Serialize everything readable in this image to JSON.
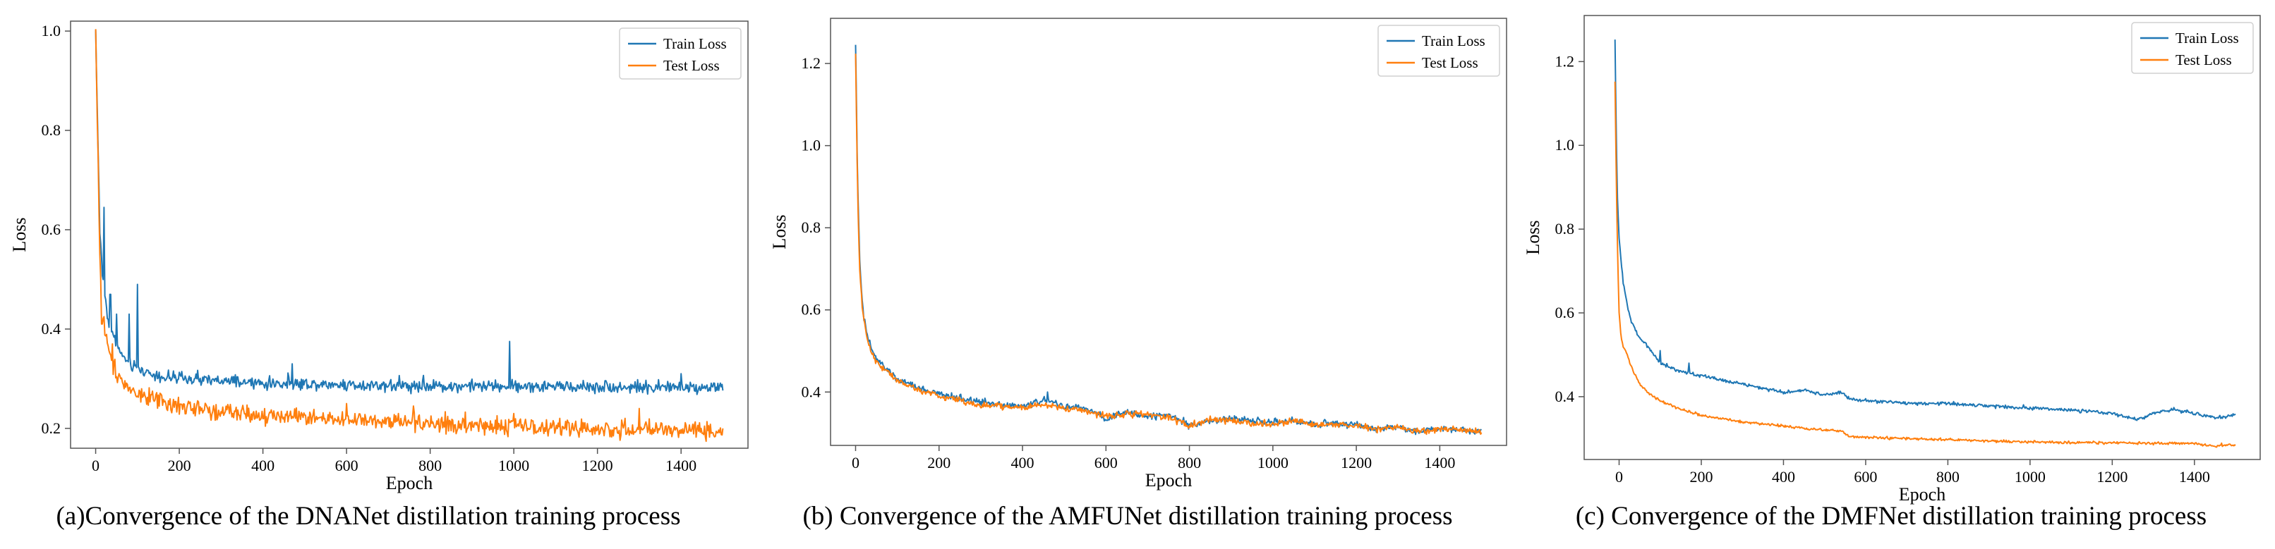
{
  "colors": {
    "train": "#1f77b4",
    "test": "#ff7f0e",
    "axis": "#555555"
  },
  "chart_data": [
    {
      "type": "line",
      "caption": "(a)Convergence of the DNANet distillation training process",
      "xlabel": "Epoch",
      "ylabel": "Loss",
      "xlim": [
        -60,
        1560
      ],
      "ylim": [
        0.16,
        1.02
      ],
      "xticks": [
        0,
        200,
        400,
        600,
        800,
        1000,
        1200,
        1400
      ],
      "yticks": [
        0.2,
        0.4,
        0.6,
        0.8,
        1.0
      ],
      "ytick_labels": [
        "0.2",
        "0.4",
        "0.6",
        "0.8",
        "1.0"
      ],
      "legend": "top-right",
      "grid": false,
      "series": [
        {
          "name": "Train Loss",
          "color_key": "train",
          "x": [
            0,
            5,
            10,
            15,
            20,
            25,
            30,
            40,
            50,
            60,
            80,
            100,
            150,
            200,
            300,
            400,
            500,
            600,
            700,
            800,
            900,
            1000,
            1100,
            1200,
            1300,
            1400,
            1500
          ],
          "y": [
            1.0,
            0.8,
            0.6,
            0.52,
            0.48,
            0.45,
            0.42,
            0.39,
            0.37,
            0.35,
            0.33,
            0.32,
            0.305,
            0.3,
            0.295,
            0.29,
            0.29,
            0.288,
            0.287,
            0.285,
            0.285,
            0.285,
            0.284,
            0.284,
            0.283,
            0.283,
            0.283
          ],
          "noise": 0.006,
          "spikes": [
            [
              20,
              0.645
            ],
            [
              35,
              0.47
            ],
            [
              50,
              0.43
            ],
            [
              80,
              0.43
            ],
            [
              100,
              0.49
            ],
            [
              470,
              0.33
            ],
            [
              990,
              0.375
            ],
            [
              1400,
              0.31
            ]
          ]
        },
        {
          "name": "Test Loss",
          "color_key": "test",
          "x": [
            0,
            5,
            10,
            15,
            20,
            25,
            30,
            40,
            50,
            60,
            80,
            100,
            150,
            200,
            300,
            400,
            500,
            600,
            700,
            800,
            900,
            1000,
            1100,
            1200,
            1300,
            1400,
            1500
          ],
          "y": [
            1.0,
            0.78,
            0.55,
            0.46,
            0.42,
            0.39,
            0.36,
            0.33,
            0.31,
            0.3,
            0.28,
            0.27,
            0.255,
            0.245,
            0.235,
            0.228,
            0.222,
            0.217,
            0.213,
            0.21,
            0.207,
            0.204,
            0.201,
            0.199,
            0.197,
            0.196,
            0.195
          ],
          "noise": 0.009,
          "spikes": [
            [
              15,
              0.41
            ],
            [
              40,
              0.37
            ],
            [
              600,
              0.25
            ],
            [
              760,
              0.245
            ],
            [
              1000,
              0.23
            ],
            [
              1300,
              0.24
            ]
          ]
        }
      ]
    },
    {
      "type": "line",
      "caption": "(b) Convergence of the AMFUNet distillation training process",
      "xlabel": "Epoch",
      "ylabel": "Loss",
      "xlim": [
        -60,
        1560
      ],
      "ylim": [
        0.27,
        1.31
      ],
      "xticks": [
        0,
        200,
        400,
        600,
        800,
        1000,
        1200,
        1400
      ],
      "yticks": [
        0.4,
        0.6,
        0.8,
        1.0,
        1.2
      ],
      "ytick_labels": [
        "0.4",
        "0.6",
        "0.8",
        "1.0",
        "1.2"
      ],
      "legend": "top-right",
      "grid": false,
      "series": [
        {
          "name": "Train Loss",
          "color_key": "train",
          "x": [
            0,
            5,
            10,
            15,
            20,
            30,
            40,
            50,
            60,
            80,
            100,
            150,
            200,
            250,
            300,
            350,
            400,
            450,
            500,
            550,
            600,
            650,
            700,
            750,
            800,
            850,
            900,
            950,
            1000,
            1050,
            1100,
            1150,
            1200,
            1250,
            1300,
            1350,
            1400,
            1450,
            1500
          ],
          "y": [
            1.25,
            0.9,
            0.72,
            0.63,
            0.58,
            0.53,
            0.5,
            0.48,
            0.47,
            0.45,
            0.43,
            0.41,
            0.395,
            0.385,
            0.375,
            0.37,
            0.365,
            0.38,
            0.365,
            0.36,
            0.335,
            0.35,
            0.34,
            0.345,
            0.32,
            0.33,
            0.335,
            0.33,
            0.325,
            0.33,
            0.32,
            0.325,
            0.32,
            0.31,
            0.315,
            0.305,
            0.31,
            0.31,
            0.305
          ],
          "noise": 0.004,
          "spikes": [
            [
              460,
              0.4
            ],
            [
              310,
              0.385
            ]
          ]
        },
        {
          "name": "Test Loss",
          "color_key": "test",
          "x": [
            0,
            5,
            10,
            15,
            20,
            30,
            40,
            50,
            60,
            80,
            100,
            150,
            200,
            250,
            300,
            350,
            400,
            450,
            500,
            550,
            600,
            650,
            700,
            750,
            800,
            850,
            900,
            950,
            1000,
            1050,
            1100,
            1150,
            1200,
            1250,
            1300,
            1350,
            1400,
            1450,
            1500
          ],
          "y": [
            1.22,
            0.88,
            0.7,
            0.62,
            0.57,
            0.52,
            0.49,
            0.475,
            0.465,
            0.447,
            0.428,
            0.405,
            0.39,
            0.38,
            0.368,
            0.365,
            0.362,
            0.37,
            0.36,
            0.355,
            0.34,
            0.348,
            0.345,
            0.34,
            0.318,
            0.332,
            0.33,
            0.325,
            0.322,
            0.328,
            0.318,
            0.322,
            0.318,
            0.31,
            0.313,
            0.305,
            0.31,
            0.308,
            0.303
          ],
          "noise": 0.004,
          "spikes": []
        }
      ]
    },
    {
      "type": "line",
      "caption": "(c) Convergence of the DMFNet distillation training process",
      "xlabel": "Epoch",
      "ylabel": "Loss",
      "xlim": [
        -85,
        1560
      ],
      "ylim": [
        0.25,
        1.31
      ],
      "xticks": [
        0,
        200,
        400,
        600,
        800,
        1000,
        1200,
        1400
      ],
      "yticks": [
        0.4,
        0.6,
        0.8,
        1.0,
        1.2
      ],
      "ytick_labels": [
        "0.4",
        "0.6",
        "0.8",
        "1.0",
        "1.2"
      ],
      "legend": "top-right",
      "grid": false,
      "series": [
        {
          "name": "Train Loss",
          "color_key": "train",
          "x": [
            -10,
            -5,
            0,
            5,
            10,
            20,
            30,
            50,
            70,
            100,
            150,
            200,
            250,
            300,
            350,
            400,
            450,
            500,
            540,
            560,
            600,
            700,
            800,
            900,
            1000,
            1100,
            1200,
            1260,
            1300,
            1350,
            1400,
            1450,
            1500
          ],
          "y": [
            1.25,
            0.9,
            0.78,
            0.72,
            0.67,
            0.62,
            0.58,
            0.54,
            0.52,
            0.48,
            0.46,
            0.45,
            0.44,
            0.43,
            0.42,
            0.41,
            0.415,
            0.405,
            0.41,
            0.395,
            0.39,
            0.385,
            0.383,
            0.378,
            0.373,
            0.368,
            0.36,
            0.345,
            0.36,
            0.37,
            0.36,
            0.35,
            0.355
          ],
          "noise": 0.002,
          "spikes": [
            [
              100,
              0.51
            ],
            [
              170,
              0.48
            ]
          ]
        },
        {
          "name": "Test Loss",
          "color_key": "test",
          "x": [
            -10,
            -5,
            0,
            5,
            10,
            20,
            30,
            50,
            70,
            100,
            150,
            200,
            300,
            400,
            500,
            540,
            560,
            600,
            700,
            800,
            900,
            1000,
            1100,
            1200,
            1300,
            1400,
            1450,
            1500
          ],
          "y": [
            1.15,
            0.8,
            0.6,
            0.54,
            0.52,
            0.5,
            0.47,
            0.43,
            0.41,
            0.39,
            0.37,
            0.355,
            0.34,
            0.33,
            0.32,
            0.318,
            0.305,
            0.303,
            0.3,
            0.297,
            0.294,
            0.292,
            0.29,
            0.29,
            0.289,
            0.288,
            0.282,
            0.285
          ],
          "noise": 0.0015,
          "spikes": []
        }
      ]
    }
  ]
}
